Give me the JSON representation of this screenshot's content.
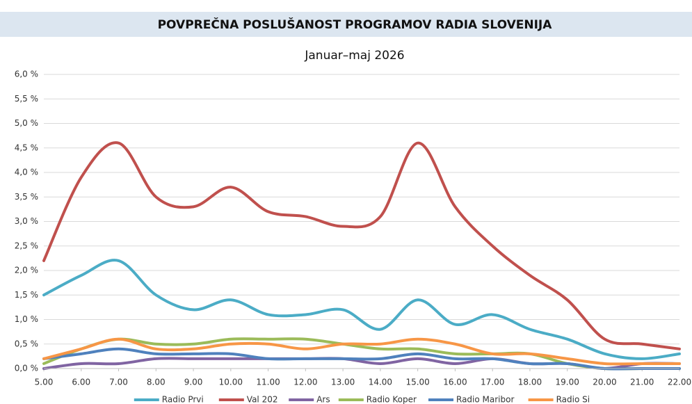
{
  "chart_data": {
    "type": "line",
    "title": "POVPREČNA POSLUŠANOST PROGRAMOV RADIA SLOVENIJA",
    "subtitle": "Januar–maj 2026",
    "x": [
      5,
      6,
      7,
      8,
      9,
      10,
      11,
      12,
      13,
      14,
      15,
      16,
      17,
      18,
      19,
      20,
      21,
      22
    ],
    "xlim": [
      5,
      22
    ],
    "xticks": [
      {
        "value": 5,
        "label": "5.00"
      },
      {
        "value": 6,
        "label": "6.00"
      },
      {
        "value": 7,
        "label": "7.00"
      },
      {
        "value": 8,
        "label": "8.00"
      },
      {
        "value": 9,
        "label": "9.00"
      },
      {
        "value": 10,
        "label": "10.00"
      },
      {
        "value": 11,
        "label": "11.00"
      },
      {
        "value": 12,
        "label": "12.00"
      },
      {
        "value": 13,
        "label": "13.00"
      },
      {
        "value": 14,
        "label": "14.00"
      },
      {
        "value": 15,
        "label": "15.00"
      },
      {
        "value": 16,
        "label": "16.00"
      },
      {
        "value": 17,
        "label": "17.00"
      },
      {
        "value": 18,
        "label": "18.00"
      },
      {
        "value": 19,
        "label": "19.00"
      },
      {
        "value": 20,
        "label": "20.00"
      },
      {
        "value": 21,
        "label": "21.00"
      },
      {
        "value": 22,
        "label": "22.00"
      }
    ],
    "ylim": [
      0,
      6
    ],
    "yticks": [
      {
        "value": 0,
        "label": "0,0 %"
      },
      {
        "value": 0.5,
        "label": "0,5 %"
      },
      {
        "value": 1,
        "label": "1,0 %"
      },
      {
        "value": 1.5,
        "label": "1,5 %"
      },
      {
        "value": 2,
        "label": "2,0 %"
      },
      {
        "value": 2.5,
        "label": "2,5 %"
      },
      {
        "value": 3,
        "label": "3,0 %"
      },
      {
        "value": 3.5,
        "label": "3,5 %"
      },
      {
        "value": 4,
        "label": "4,0 %"
      },
      {
        "value": 4.5,
        "label": "4,5 %"
      },
      {
        "value": 5,
        "label": "5,0 %"
      },
      {
        "value": 5.5,
        "label": "5,5 %"
      },
      {
        "value": 6,
        "label": "6,0 %"
      }
    ],
    "grid": true,
    "smooth": true,
    "legend": "bottom",
    "series": [
      {
        "name": "Radio Prvi",
        "color": "#4bacc6",
        "values": [
          1.5,
          1.9,
          2.2,
          1.5,
          1.2,
          1.4,
          1.1,
          1.1,
          1.2,
          0.8,
          1.4,
          0.9,
          1.1,
          0.8,
          0.6,
          0.3,
          0.2,
          0.3
        ]
      },
      {
        "name": "Val 202",
        "color": "#c0504d",
        "values": [
          2.2,
          3.9,
          4.6,
          3.5,
          3.3,
          3.7,
          3.2,
          3.1,
          2.9,
          3.1,
          4.6,
          3.3,
          2.5,
          1.9,
          1.4,
          0.6,
          0.5,
          0.4
        ]
      },
      {
        "name": "Ars",
        "color": "#8064a2",
        "values": [
          0,
          0.1,
          0.1,
          0.2,
          0.2,
          0.2,
          0.2,
          0.2,
          0.2,
          0.1,
          0.2,
          0.1,
          0.2,
          0.1,
          0.1,
          0,
          0.1,
          0.1
        ]
      },
      {
        "name": "Radio Koper",
        "color": "#9bbb59",
        "values": [
          0.1,
          0.4,
          0.6,
          0.5,
          0.5,
          0.6,
          0.6,
          0.6,
          0.5,
          0.4,
          0.4,
          0.3,
          0.3,
          0.3,
          0.1,
          0,
          0,
          0
        ]
      },
      {
        "name": "Radio Maribor",
        "color": "#4f81bd",
        "values": [
          0.2,
          0.3,
          0.4,
          0.3,
          0.3,
          0.3,
          0.2,
          0.2,
          0.2,
          0.2,
          0.3,
          0.2,
          0.2,
          0.1,
          0.1,
          0,
          0,
          0
        ]
      },
      {
        "name": "Radio Si",
        "color": "#f79646",
        "values": [
          0.2,
          0.4,
          0.6,
          0.4,
          0.4,
          0.5,
          0.5,
          0.4,
          0.5,
          0.5,
          0.6,
          0.5,
          0.3,
          0.3,
          0.2,
          0.1,
          0.1,
          0.1
        ]
      }
    ]
  }
}
